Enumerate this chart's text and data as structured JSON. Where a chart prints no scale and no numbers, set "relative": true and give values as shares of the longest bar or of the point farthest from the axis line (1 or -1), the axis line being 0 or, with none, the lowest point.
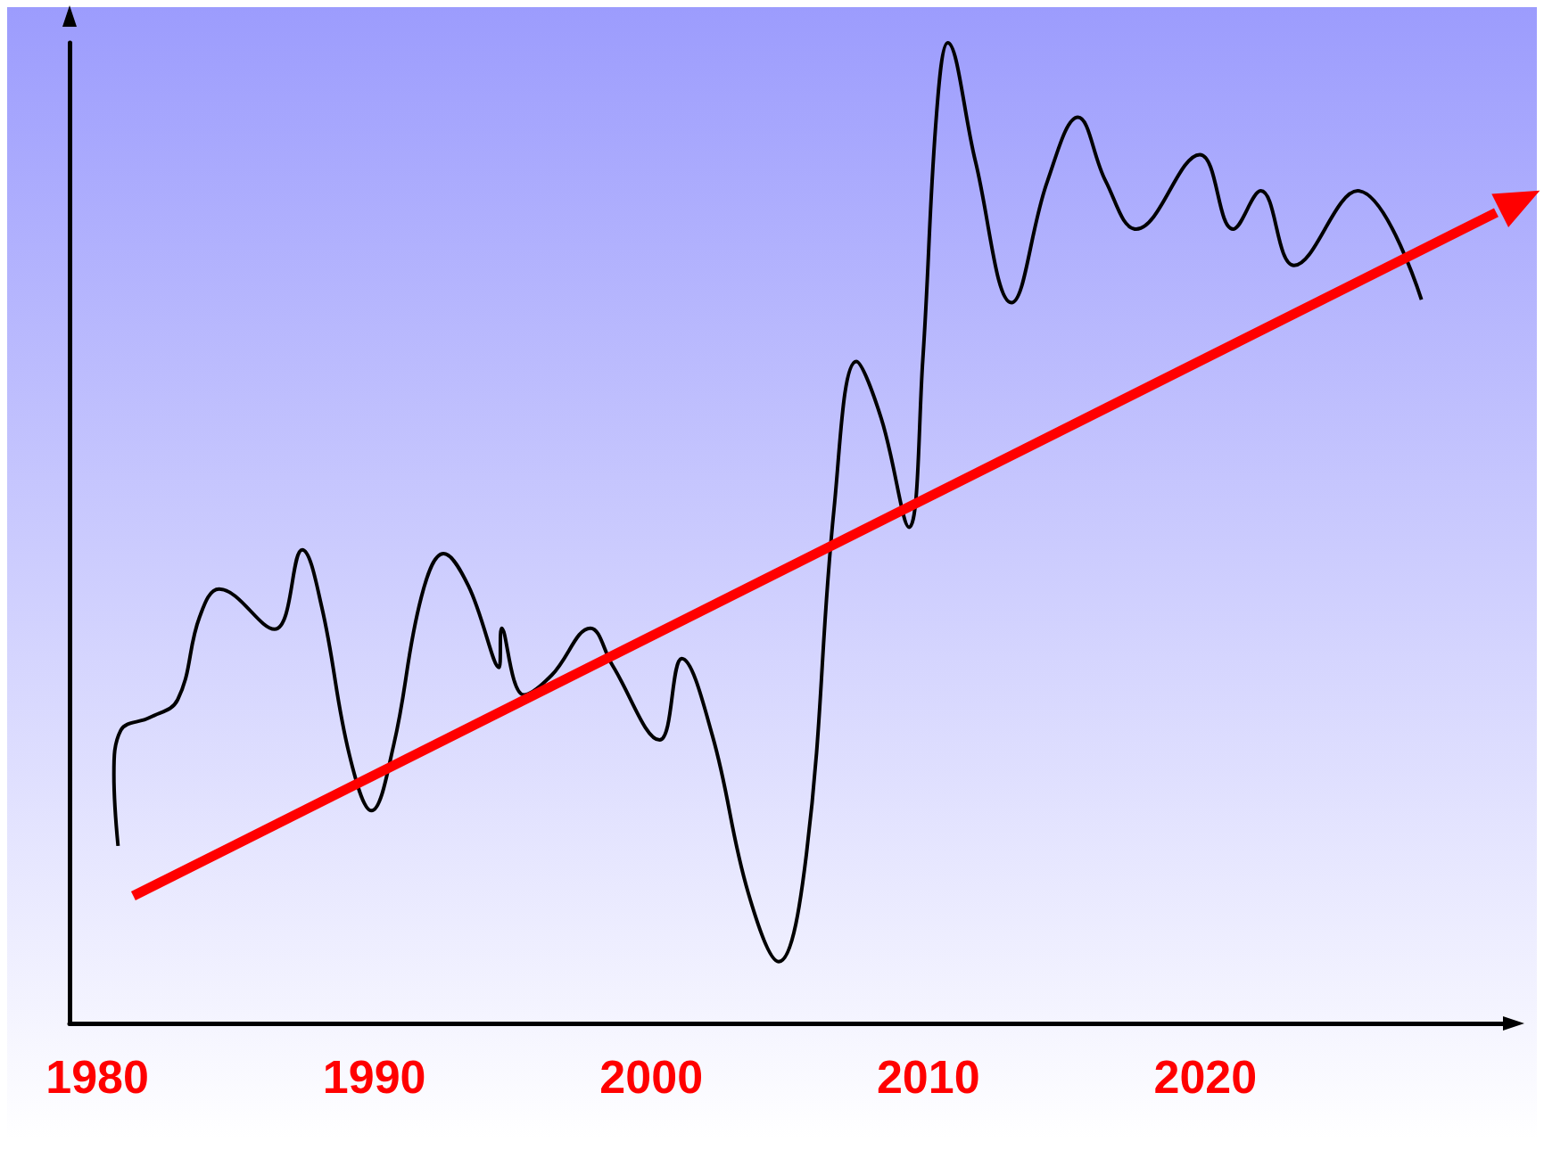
{
  "chart_data": {
    "type": "line",
    "relative": true,
    "xlim": [
      1979,
      2031
    ],
    "xticks": [
      1980,
      1990,
      2000,
      2010,
      2020
    ],
    "grid": false,
    "marker": "none",
    "line_style": "solid",
    "series": [
      {
        "color": "#000000",
        "x": [
          1980.75,
          1980.6,
          1980.85,
          1981.9,
          1982.9,
          1983.7,
          1984.4,
          1986.4,
          1987.4,
          1988.1,
          1989.1,
          1989.9,
          1990.7,
          1991.7,
          1992.5,
          1993.4,
          1994.5,
          1994.6,
          1995.4,
          1996.4,
          1997.8,
          1998.6,
          2000.3,
          2001.1,
          2002.2,
          2003.5,
          2004.6,
          2005.6,
          2006.6,
          2007.4,
          2008.3,
          2009.3,
          2009.8,
          2010.3,
          2010.7,
          2011.7,
          2013.0,
          2014.3,
          2015.4,
          2016.4,
          2017.5,
          2019.8,
          2021.0,
          2022.0,
          2023.2,
          2025.5,
          2027.8
        ],
        "values": [
          0.181,
          0.254,
          0.299,
          0.312,
          0.33,
          0.415,
          0.443,
          0.402,
          0.483,
          0.425,
          0.274,
          0.217,
          0.284,
          0.435,
          0.479,
          0.446,
          0.363,
          0.403,
          0.335,
          0.355,
          0.403,
          0.365,
          0.289,
          0.372,
          0.294,
          0.133,
          0.063,
          0.173,
          0.526,
          0.675,
          0.617,
          0.506,
          0.677,
          0.929,
          1,
          0.879,
          0.735,
          0.859,
          0.924,
          0.859,
          0.81,
          0.886,
          0.81,
          0.849,
          0.773,
          0.849,
          0.738
        ]
      },
      {
        "type": "line",
        "color": "#ff0000",
        "x": [
          1981.3,
          2030.5
        ],
        "values": [
          0.13,
          0.827
        ]
      }
    ]
  }
}
